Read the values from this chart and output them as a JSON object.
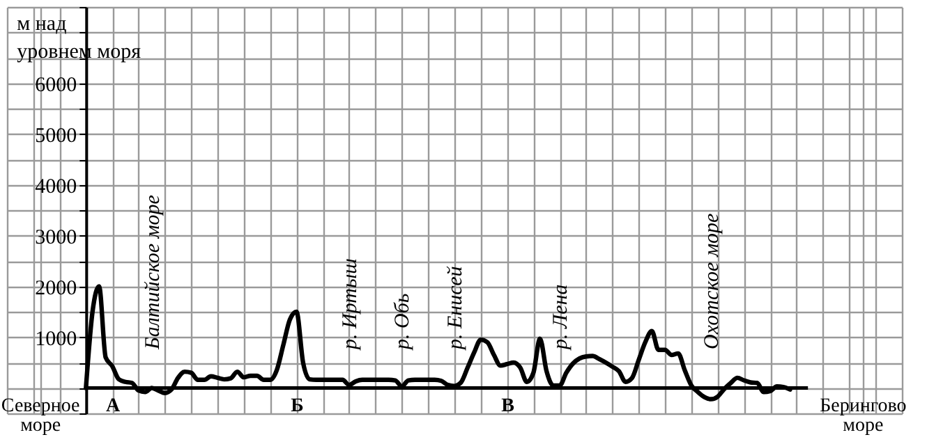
{
  "chart_data": {
    "type": "line",
    "ylabel": "м над уровнем моря",
    "categories": [
      null,
      null,
      null,
      null,
      null,
      "Северное море",
      null,
      null,
      null,
      null,
      null,
      null,
      null,
      null,
      null,
      null,
      "А",
      null,
      null,
      null,
      null,
      null,
      null,
      null,
      null,
      null,
      null,
      null,
      null,
      null,
      null,
      null,
      null,
      null,
      null,
      null,
      null,
      null,
      null,
      null,
      null,
      null,
      null,
      null,
      "Б",
      null,
      null,
      null,
      null,
      null,
      null,
      null,
      null,
      null,
      null,
      null,
      null,
      null,
      null,
      null,
      null,
      null,
      null,
      null,
      null,
      null,
      null,
      null,
      null,
      null,
      null,
      null,
      null,
      null,
      null,
      null,
      "В",
      null,
      null,
      null,
      null,
      null,
      null,
      null,
      null,
      null,
      null,
      null,
      null,
      null,
      null,
      null,
      null,
      null,
      null,
      null,
      null,
      null,
      null,
      null,
      null,
      null,
      null,
      null,
      null,
      null,
      null,
      null,
      null,
      null,
      null,
      null,
      null,
      null,
      null,
      null,
      null,
      null,
      null,
      null,
      null,
      null,
      null,
      null,
      null,
      null,
      null,
      null,
      null,
      null,
      "Берингово море",
      null,
      null,
      null,
      null,
      null,
      null
    ],
    "values": [
      null,
      null,
      null,
      null,
      null,
      null,
      null,
      null,
      null,
      null,
      null,
      null,
      0,
      1500,
      2000,
      600,
      430,
      170,
      120,
      100,
      -50,
      -80,
      0,
      -50,
      -100,
      -30,
      200,
      320,
      300,
      160,
      160,
      230,
      200,
      170,
      190,
      320,
      210,
      240,
      240,
      160,
      160,
      350,
      850,
      1350,
      1500,
      500,
      170,
      160,
      160,
      160,
      160,
      160,
      60,
      130,
      160,
      160,
      160,
      160,
      160,
      150,
      30,
      150,
      160,
      160,
      160,
      160,
      140,
      60,
      40,
      110,
      400,
      700,
      950,
      900,
      650,
      440,
      470,
      500,
      400,
      120,
      300,
      970,
      330,
      50,
      50,
      300,
      480,
      580,
      620,
      630,
      570,
      500,
      420,
      330,
      120,
      200,
      550,
      900,
      1120,
      750,
      750,
      650,
      680,
      350,
      50,
      -80,
      -180,
      -220,
      -170,
      -20,
      100,
      200,
      150,
      110,
      100,
      -80,
      -60,
      30,
      20,
      -30,
      null,
      null,
      null,
      null,
      null,
      null,
      null,
      null,
      null,
      null,
      null,
      null,
      null,
      null,
      null,
      null,
      null
    ],
    "color": "#000000",
    "ylim": [
      -500,
      7500
    ],
    "yticks": [
      {
        "value": -500,
        "label": null
      },
      {
        "value": 0,
        "label": null
      },
      {
        "value": 500,
        "label": null
      },
      1000,
      {
        "value": 1500,
        "label": null
      },
      2000,
      {
        "value": 2500,
        "label": null
      },
      3000,
      {
        "value": 3500,
        "label": null
      },
      4000,
      {
        "value": 4500,
        "label": null
      },
      5000,
      {
        "value": 5500,
        "label": null
      },
      6000,
      {
        "value": 6500,
        "label": null
      },
      {
        "value": 7000,
        "label": null
      },
      {
        "value": 7500,
        "label": null
      }
    ],
    "grid": true,
    "ref_lines": [
      {
        "axis": "y",
        "value": 0,
        "color": "#000000"
      }
    ],
    "annotations": [
      "Балтийское море",
      "р. Иртыш",
      "р. Обь",
      "р. Енисей",
      "р. Лена",
      "Охотское море"
    ]
  }
}
